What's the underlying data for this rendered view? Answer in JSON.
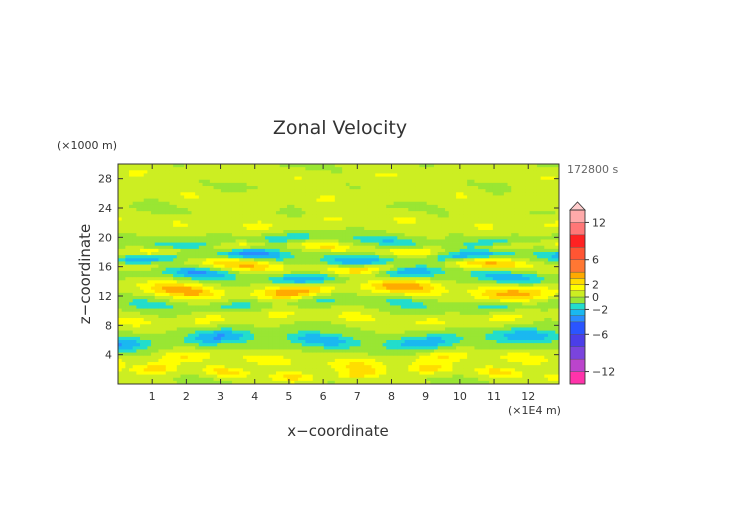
{
  "chart_data": {
    "type": "heatmap",
    "title": "Zonal Velocity",
    "xlabel": "x−coordinate",
    "ylabel": "z−coordinate",
    "x_unit": "(×1E4 m)",
    "y_unit": "(×1000 m)",
    "time_label": "172800 s",
    "xlim": [
      0,
      12.9
    ],
    "ylim": [
      0,
      30
    ],
    "x_ticks": [
      "1",
      "2",
      "3",
      "4",
      "5",
      "6",
      "7",
      "8",
      "9",
      "10",
      "11",
      "12"
    ],
    "y_ticks": [
      "4",
      "8",
      "12",
      "16",
      "20",
      "24",
      "28"
    ],
    "colorbar": {
      "ticks": [
        "12",
        "6",
        "2",
        "0",
        "−2",
        "−6",
        "−12"
      ],
      "levels": [
        -14,
        -12,
        -10,
        -8,
        -6,
        -4,
        -3,
        -2,
        -1,
        0,
        1,
        2,
        3,
        4,
        6,
        8,
        10,
        12,
        14
      ],
      "colors": [
        "#ff33aa",
        "#bb44cc",
        "#7a44dd",
        "#4b3ee8",
        "#2a55ff",
        "#2a8cff",
        "#1ab8f0",
        "#22ddcc",
        "#99e633",
        "#ccee22",
        "#ffff00",
        "#ffdd00",
        "#ffaa00",
        "#ff7733",
        "#ff5533",
        "#ff2222",
        "#ff7777",
        "#ffaaaa"
      ]
    },
    "bands": [
      {
        "z": 28.5,
        "amp": 1.0,
        "wx": 2.4,
        "thick": 1.0
      },
      {
        "z": 25.5,
        "amp": 1.0,
        "wx": 2.0,
        "thick": 1.0
      },
      {
        "z": 22.0,
        "amp": 1.2,
        "wx": 2.2,
        "thick": 1.0
      },
      {
        "z": 19.5,
        "amp": -2.0,
        "wx": 3.0,
        "thick": 0.7
      },
      {
        "z": 18.5,
        "amp": 2.2,
        "wx": 2.5,
        "thick": 0.6
      },
      {
        "z": 17.2,
        "amp": -3.5,
        "wx": 3.2,
        "thick": 0.8
      },
      {
        "z": 16.0,
        "amp": 3.2,
        "wx": 3.6,
        "thick": 0.8
      },
      {
        "z": 14.8,
        "amp": -3.2,
        "wx": 3.0,
        "thick": 0.8
      },
      {
        "z": 12.8,
        "amp": 3.8,
        "wx": 3.2,
        "thick": 1.0
      },
      {
        "z": 11.0,
        "amp": -1.5,
        "wx": 2.5,
        "thick": 0.8
      },
      {
        "z": 9.0,
        "amp": 1.5,
        "wx": 2.2,
        "thick": 0.8
      },
      {
        "z": 6.0,
        "amp": -3.0,
        "wx": 3.0,
        "thick": 1.0
      },
      {
        "z": 3.2,
        "amp": 2.0,
        "wx": 2.5,
        "thick": 0.9
      },
      {
        "z": 1.5,
        "amp": 2.5,
        "wx": 2.0,
        "thick": 0.7
      }
    ],
    "grid": false
  }
}
